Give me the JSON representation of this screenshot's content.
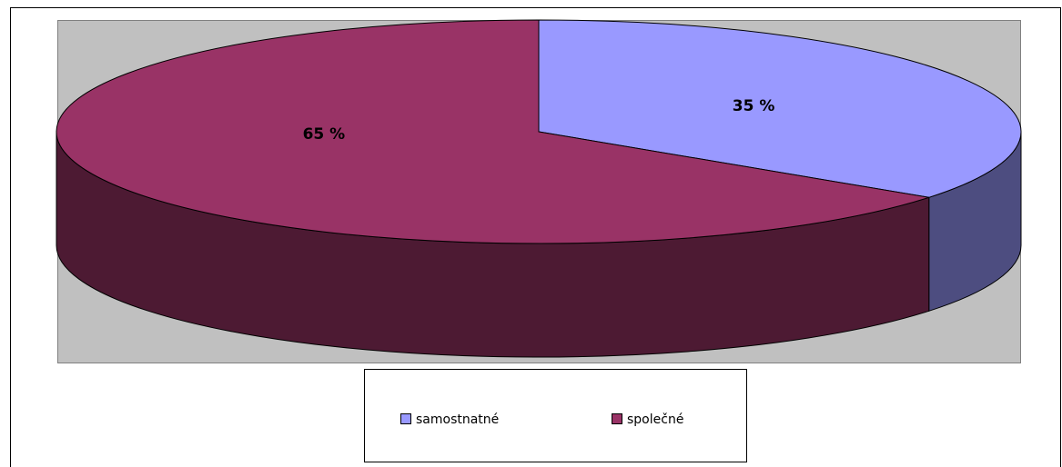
{
  "chart_data": {
    "type": "pie",
    "categories": [
      "samostnatné",
      "společné"
    ],
    "values": [
      35,
      65
    ],
    "value_labels": [
      "35 %",
      "65 %"
    ],
    "colors": [
      "#9999ff",
      "#993366"
    ],
    "legend": "bottom"
  }
}
